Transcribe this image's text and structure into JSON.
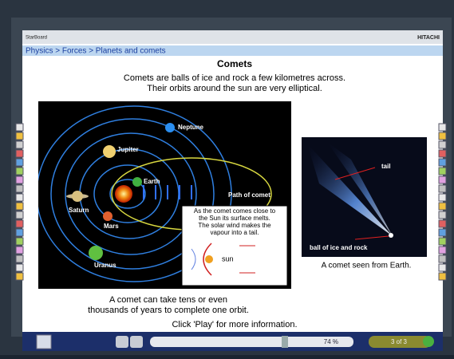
{
  "header": {
    "brand": "StarBoard",
    "maker": "HITACHI"
  },
  "breadcrumb": "Physics > Forces > Planets and comets",
  "title": "Comets",
  "intro": [
    "Comets are balls of ice and rock a few kilometres across.",
    "Their orbits around the sun are very elliptical."
  ],
  "diagram": {
    "planets": [
      "Neptune",
      "Jupiter",
      "Earth",
      "Saturn",
      "Mars",
      "Uranus"
    ],
    "path_label": "Path of comet",
    "callout": [
      "As the comet comes close to",
      "the Sun its surface melts.",
      "The solar wind makes the",
      "vapour into a tail."
    ],
    "sun_label": "sun"
  },
  "photo": {
    "tail_label": "tail",
    "nucleus_label": "ball of ice and rock",
    "caption": "A comet seen from Earth."
  },
  "note": [
    "A comet can take tens or even",
    "thousands of years to complete one orbit."
  ],
  "prompt": "Click 'Play' for more information.",
  "controls": {
    "zoom": "74 %",
    "page": "3 of 3"
  }
}
